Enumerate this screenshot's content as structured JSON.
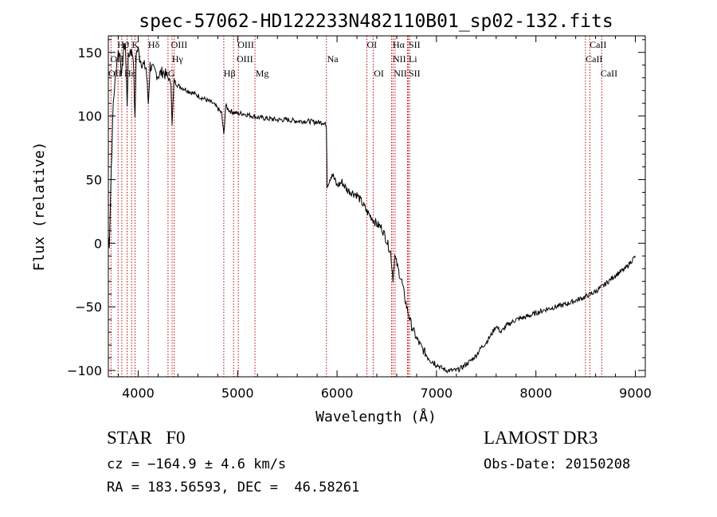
{
  "chart_data": {
    "type": "line",
    "title": "spec-57062-HD122233N482110B01_sp02-132.fits",
    "xlabel": "Wavelength (Å)",
    "ylabel": "Flux (relative)",
    "xlim": [
      3700,
      9100
    ],
    "ylim": [
      -105,
      163
    ],
    "xticks": [
      4000,
      5000,
      6000,
      7000,
      8000,
      9000
    ],
    "yticks": [
      -100,
      -50,
      0,
      50,
      100,
      150
    ],
    "grid": false,
    "series": [
      {
        "name": "flux",
        "x": [
          3700,
          3710,
          3730,
          3750,
          3780,
          3800,
          3820,
          3835,
          3850,
          3870,
          3889,
          3900,
          3920,
          3935,
          3950,
          3968,
          3980,
          4000,
          4020,
          4050,
          4080,
          4102,
          4120,
          4150,
          4200,
          4250,
          4300,
          4330,
          4341,
          4360,
          4400,
          4450,
          4500,
          4550,
          4600,
          4650,
          4700,
          4750,
          4800,
          4840,
          4861,
          4880,
          4920,
          4960,
          5000,
          5050,
          5100,
          5150,
          5200,
          5300,
          5400,
          5500,
          5600,
          5700,
          5800,
          5880,
          5893,
          5900,
          5910,
          5950,
          6000,
          6050,
          6100,
          6150,
          6200,
          6250,
          6300,
          6350,
          6400,
          6450,
          6500,
          6540,
          6563,
          6580,
          6620,
          6650,
          6700,
          6750,
          6800,
          6850,
          6900,
          6950,
          7000,
          7050,
          7100,
          7150,
          7200,
          7250,
          7300,
          7350,
          7400,
          7450,
          7500,
          7550,
          7600,
          7650,
          7700,
          7800,
          7900,
          8000,
          8100,
          8200,
          8300,
          8400,
          8500,
          8600,
          8700,
          8800,
          8900,
          8950,
          9000
        ],
        "y": [
          5,
          0,
          60,
          110,
          140,
          150,
          148,
          130,
          150,
          158,
          110,
          145,
          152,
          150,
          148,
          95,
          150,
          152,
          145,
          140,
          138,
          110,
          140,
          136,
          132,
          135,
          130,
          126,
          92,
          128,
          124,
          122,
          120,
          118,
          116,
          114,
          112,
          110,
          106,
          102,
          85,
          108,
          104,
          103,
          102,
          102,
          101,
          100,
          99,
          98,
          97,
          97,
          96,
          96,
          95,
          95,
          90,
          45,
          48,
          55,
          45,
          48,
          42,
          40,
          38,
          32,
          25,
          20,
          15,
          12,
          2,
          -8,
          -28,
          -10,
          -22,
          -30,
          -50,
          -65,
          -75,
          -82,
          -88,
          -92,
          -95,
          -98,
          -100,
          -100,
          -100,
          -98,
          -95,
          -92,
          -88,
          -82,
          -78,
          -72,
          -65,
          -70,
          -65,
          -60,
          -58,
          -55,
          -52,
          -50,
          -48,
          -45,
          -42,
          -38,
          -32,
          -25,
          -20,
          -15,
          -10
        ]
      }
    ],
    "line_markers": {
      "top_row": [
        "Hϑ",
        "K",
        "Hδ",
        "OIII",
        "OIII",
        "OI",
        "Hα",
        "SII",
        "CaII"
      ],
      "middle_row": [
        "OII",
        "H",
        "Hγ",
        "OIII",
        "Na",
        "NII",
        "Li",
        "CaII"
      ],
      "bottom_row": [
        "OII",
        "Hε",
        "G",
        "Hβ",
        "Mg",
        "OI",
        "NII",
        "SII",
        "CaII"
      ]
    }
  },
  "info": {
    "class_line": "STAR   F0",
    "survey": "LAMOST DR3",
    "cz": "cz = −164.9 ± 4.6 km/s",
    "obs_date": "Obs-Date: 20150208",
    "ra_dec": "RA = 183.56593, DEC =  46.58261"
  }
}
